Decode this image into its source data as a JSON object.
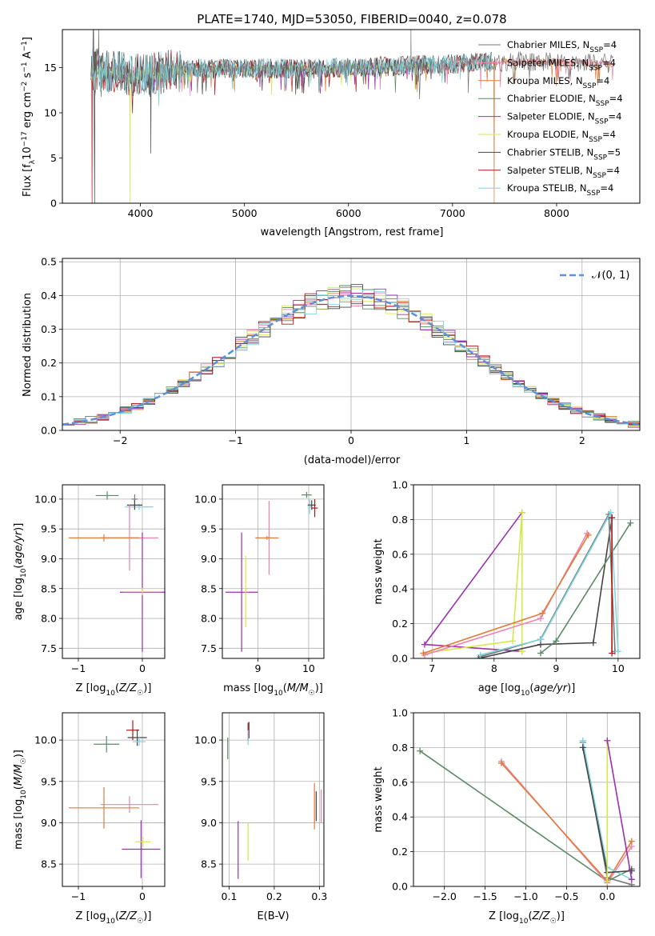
{
  "figure_title": "PLATE=1740, MJD=53050, FIBERID=0040, z=0.078",
  "colors": {
    "Chabrier MILES": "#777777",
    "Salpeter MILES": "#ee82ae",
    "Kroupa MILES": "#e07b39",
    "Chabrier ELODIE": "#5b8a66",
    "Salpeter ELODIE": "#9b30b0",
    "Kroupa ELODIE": "#d4e84a",
    "Chabrier STELIB": "#444444",
    "Salpeter STELIB": "#b01818",
    "Kroupa STELIB": "#7fd6e0",
    "normal": "#5f8fd6"
  },
  "chart_data": [
    {
      "id": "spectrum",
      "type": "line",
      "title": "PLATE=1740, MJD=53050, FIBERID=0040, z=0.078",
      "xlabel": "wavelength [Angstrom, rest frame]",
      "ylabel": "Flux [f_λ10^-17 erg cm^-2 s^-1 A^-1]",
      "xlim": [
        3250,
        8800
      ],
      "ylim": [
        0,
        19.2
      ],
      "xticks": [
        4000,
        5000,
        6000,
        7000,
        8000
      ],
      "yticks": [
        0,
        5,
        10,
        15
      ],
      "legend_position": "upper right",
      "series": [
        {
          "name": "Chabrier MILES, N_SSP=4"
        },
        {
          "name": "Salpeter MILES, N_SSP=4"
        },
        {
          "name": "Kroupa MILES, N_SSP=4"
        },
        {
          "name": "Chabrier ELODIE, N_SSP=4"
        },
        {
          "name": "Salpeter ELODIE, N_SSP=4"
        },
        {
          "name": "Kroupa ELODIE, N_SSP=4"
        },
        {
          "name": "Chabrier STELIB, N_SSP=5"
        },
        {
          "name": "Salpeter STELIB, N_SSP=4"
        },
        {
          "name": "Kroupa STELIB, N_SSP=4"
        }
      ],
      "continuum": [
        [
          3520,
          14.8
        ],
        [
          3700,
          14.5
        ],
        [
          4000,
          14.2
        ],
        [
          4300,
          14.6
        ],
        [
          4600,
          14.9
        ],
        [
          5000,
          14.9
        ],
        [
          5500,
          14.9
        ],
        [
          6000,
          15.0
        ],
        [
          6500,
          15.2
        ],
        [
          6800,
          15.3
        ],
        [
          7000,
          15.4
        ],
        [
          7300,
          15.6
        ],
        [
          7700,
          15.7
        ],
        [
          8200,
          15.6
        ],
        [
          8550,
          15.4
        ]
      ]
    },
    {
      "id": "residuals",
      "type": "histogram",
      "xlabel": "(data-model)/error",
      "ylabel": "Normed distribution",
      "xlim": [
        -2.5,
        2.5
      ],
      "ylim": [
        0,
        0.51
      ],
      "xticks": [
        -2,
        -1,
        0,
        1,
        2
      ],
      "yticks": [
        0.0,
        0.1,
        0.2,
        0.3,
        0.4,
        0.5
      ],
      "bin_width": 0.1,
      "legend": "N(0,1)",
      "legend_position": "upper right"
    },
    {
      "id": "age_vs_Z",
      "type": "errorbar",
      "xlabel": "Z [log10(Z/Z☉)]",
      "ylabel": "age  [log10(age/yr)]",
      "xlim": [
        -1.25,
        0.35
      ],
      "ylim": [
        7.33,
        10.24
      ],
      "xticks": [
        -1,
        0
      ],
      "yticks": [
        7.5,
        8.0,
        8.5,
        9.0,
        9.5,
        10.0
      ],
      "points": [
        {
          "model": "Chabrier ELODIE",
          "x": -0.55,
          "y": 10.06,
          "xerr": 0.18,
          "yerr": 0.07
        },
        {
          "model": "Chabrier MILES",
          "x": -0.12,
          "y": 10.0,
          "xerr": 0.05,
          "yerr": 0.08
        },
        {
          "model": "Kroupa STELIB",
          "x": -0.05,
          "y": 9.87,
          "xerr": 0.22,
          "yerr": 0.05
        },
        {
          "model": "Chabrier STELIB",
          "x": -0.12,
          "y": 9.9,
          "xerr": 0.12,
          "yerr": 0.08
        },
        {
          "model": "Salpeter MILES",
          "x": -0.2,
          "y": 9.35,
          "xerr": 0.45,
          "yerr": 0.55
        },
        {
          "model": "Kroupa MILES",
          "x": -0.6,
          "y": 9.35,
          "xerr": 0.55,
          "yerr": 0.06
        },
        {
          "model": "Salpeter ELODIE",
          "x": 0.0,
          "y": 8.44,
          "xerr": 0.35,
          "yerr": 1.0
        },
        {
          "model": "Kroupa ELODIE",
          "x": 0.0,
          "y": 8.45,
          "xerr": 0.3,
          "yerr": 0.06
        }
      ]
    },
    {
      "id": "age_vs_mass",
      "type": "errorbar",
      "xlabel": "mass [log10(M/M☉)]",
      "xlim": [
        8.3,
        10.3
      ],
      "ylim": [
        7.33,
        10.24
      ],
      "xticks": [
        9,
        10
      ],
      "yticks": [
        7.5,
        8.0,
        8.5,
        9.0,
        9.5,
        10.0
      ],
      "points": [
        {
          "model": "Chabrier ELODIE",
          "x": 9.96,
          "y": 10.07,
          "xerr": 0.1,
          "yerr": 0.05
        },
        {
          "model": "Kroupa STELIB",
          "x": 10.02,
          "y": 9.87,
          "xerr": 0.04,
          "yerr": 0.12
        },
        {
          "model": "Chabrier STELIB",
          "x": 10.06,
          "y": 9.9,
          "xerr": 0.08,
          "yerr": 0.08
        },
        {
          "model": "Salpeter STELIB",
          "x": 10.12,
          "y": 9.85,
          "xerr": 0.06,
          "yerr": 0.15
        },
        {
          "model": "Salpeter MILES",
          "x": 9.22,
          "y": 9.35,
          "xerr": 0.03,
          "yerr": 0.62
        },
        {
          "model": "Kroupa MILES",
          "x": 9.18,
          "y": 9.35,
          "xerr": 0.23,
          "yerr": 0.03
        },
        {
          "model": "Salpeter ELODIE",
          "x": 8.68,
          "y": 8.44,
          "xerr": 0.32,
          "yerr": 1.0
        },
        {
          "model": "Kroupa ELODIE",
          "x": 8.76,
          "y": 8.45,
          "xerr": 0.06,
          "yerr": 0.6
        }
      ]
    },
    {
      "id": "weight_vs_age",
      "type": "line",
      "xlabel": "age  [log10(age/yr)]",
      "ylabel": "mass weight",
      "xlim": [
        6.7,
        10.35
      ],
      "ylim": [
        0.0,
        1.0
      ],
      "xticks": [
        7,
        8,
        9,
        10
      ],
      "yticks": [
        0.0,
        0.2,
        0.4,
        0.6,
        0.8,
        1.0
      ],
      "series": [
        {
          "model": "Salpeter ELODIE",
          "points": [
            [
              8.45,
              0.04
            ],
            [
              6.88,
              0.08
            ],
            [
              8.45,
              0.84
            ]
          ]
        },
        {
          "model": "Kroupa ELODIE",
          "points": [
            [
              6.86,
              0.03
            ],
            [
              8.3,
              0.1
            ],
            [
              8.45,
              0.84
            ],
            [
              8.45,
              0.04
            ]
          ]
        },
        {
          "model": "Salpeter MILES",
          "points": [
            [
              6.88,
              0.02
            ],
            [
              8.75,
              0.23
            ],
            [
              9.5,
              0.72
            ]
          ]
        },
        {
          "model": "Kroupa MILES",
          "points": [
            [
              6.86,
              0.03
            ],
            [
              8.78,
              0.26
            ],
            [
              9.52,
              0.71
            ]
          ]
        },
        {
          "model": "Chabrier STELIB",
          "points": [
            [
              7.75,
              0.0
            ],
            [
              8.75,
              0.08
            ],
            [
              9.6,
              0.09
            ],
            [
              9.9,
              0.81
            ]
          ]
        },
        {
          "model": "Chabrier ELODIE",
          "points": [
            [
              8.75,
              0.03
            ],
            [
              9.0,
              0.1
            ],
            [
              10.2,
              0.78
            ]
          ]
        },
        {
          "model": "Chabrier MILES",
          "points": [
            [
              7.78,
              0.01
            ],
            [
              8.75,
              0.11
            ],
            [
              9.85,
              0.83
            ],
            [
              9.95,
              0.04
            ]
          ]
        },
        {
          "model": "Kroupa STELIB",
          "points": [
            [
              7.78,
              0.02
            ],
            [
              8.76,
              0.11
            ],
            [
              9.88,
              0.84
            ],
            [
              10.0,
              0.04
            ]
          ]
        },
        {
          "model": "Salpeter STELIB",
          "points": [
            [
              9.9,
              0.81
            ],
            [
              9.9,
              0.03
            ]
          ]
        }
      ]
    },
    {
      "id": "mass_vs_Z",
      "type": "errorbar",
      "xlabel": "Z [log10(Z/Z☉)]",
      "ylabel": "mass [log10(M/M☉)]",
      "xlim": [
        -1.25,
        0.35
      ],
      "ylim": [
        8.23,
        10.33
      ],
      "xticks": [
        -1,
        0
      ],
      "yticks": [
        8.5,
        9.0,
        9.5,
        10.0
      ],
      "points": [
        {
          "model": "Chabrier ELODIE",
          "x": -0.56,
          "y": 9.95,
          "xerr": 0.2,
          "yerr": 0.1
        },
        {
          "model": "Salpeter STELIB",
          "x": -0.15,
          "y": 10.12,
          "xerr": 0.1,
          "yerr": 0.12
        },
        {
          "model": "Chabrier STELIB",
          "x": -0.08,
          "y": 10.03,
          "xerr": 0.15,
          "yerr": 0.1
        },
        {
          "model": "Kroupa STELIB",
          "x": -0.05,
          "y": 9.98,
          "xerr": 0.1,
          "yerr": 0.05
        },
        {
          "model": "Salpeter MILES",
          "x": -0.2,
          "y": 9.22,
          "xerr": 0.45,
          "yerr": 0.1
        },
        {
          "model": "Kroupa MILES",
          "x": -0.6,
          "y": 9.18,
          "xerr": 0.55,
          "yerr": 0.25
        },
        {
          "model": "Salpeter ELODIE",
          "x": -0.02,
          "y": 8.68,
          "xerr": 0.3,
          "yerr": 0.35
        },
        {
          "model": "Kroupa ELODIE",
          "x": 0.01,
          "y": 8.77,
          "xerr": 0.12,
          "yerr": 0.06
        }
      ]
    },
    {
      "id": "mass_vs_ebv",
      "type": "errorbar",
      "xlabel": "E(B-V)",
      "xlim": [
        0.085,
        0.31
      ],
      "ylim": [
        8.23,
        10.33
      ],
      "xticks": [
        0.1,
        0.2,
        0.3
      ],
      "yticks": [
        8.5,
        9.0,
        9.5,
        10.0
      ],
      "points": [
        {
          "model": "Chabrier ELODIE",
          "x": 0.097,
          "y": 9.9,
          "yerr": 0.13
        },
        {
          "model": "Salpeter ELODIE",
          "x": 0.12,
          "y": 8.67,
          "yerr": 0.35
        },
        {
          "model": "Kroupa ELODIE",
          "x": 0.142,
          "y": 8.77,
          "yerr": 0.23
        },
        {
          "model": "Chabrier STELIB",
          "x": 0.142,
          "y": 10.1,
          "yerr": 0.11
        },
        {
          "model": "Salpeter STELIB",
          "x": 0.144,
          "y": 10.12,
          "yerr": 0.1
        },
        {
          "model": "Kroupa STELIB",
          "x": 0.142,
          "y": 10.03,
          "yerr": 0.09
        },
        {
          "model": "Kroupa MILES",
          "x": 0.289,
          "y": 9.2,
          "yerr": 0.28
        },
        {
          "model": "Chabrier STELIB",
          "x": 0.293,
          "y": 9.2,
          "yerr": 0.18
        },
        {
          "model": "Salpeter MILES",
          "x": 0.304,
          "y": 9.2,
          "yerr": 0.2
        }
      ]
    },
    {
      "id": "weight_vs_Z",
      "type": "line",
      "xlabel": "Z [log10(Z/Z☉)]",
      "ylabel": "mass weight",
      "xlim": [
        -2.38,
        0.4
      ],
      "ylim": [
        0.0,
        1.0
      ],
      "xticks": [
        -2.0,
        -1.5,
        -1.0,
        -0.5,
        0.0
      ],
      "yticks": [
        0.0,
        0.2,
        0.4,
        0.6,
        0.8,
        1.0
      ],
      "series": [
        {
          "model": "Chabrier ELODIE",
          "points": [
            [
              -2.3,
              0.78
            ],
            [
              0.0,
              0.03
            ],
            [
              0.3,
              0.1
            ]
          ]
        },
        {
          "model": "Salpeter MILES",
          "points": [
            [
              -1.3,
              0.72
            ],
            [
              0.0,
              0.02
            ],
            [
              0.3,
              0.23
            ]
          ]
        },
        {
          "model": "Kroupa MILES",
          "points": [
            [
              -1.3,
              0.71
            ],
            [
              0.0,
              0.03
            ],
            [
              0.3,
              0.26
            ]
          ]
        },
        {
          "model": "Chabrier MILES",
          "points": [
            [
              -0.3,
              0.83
            ],
            [
              0.0,
              0.05
            ],
            [
              0.3,
              0.01
            ]
          ]
        },
        {
          "model": "Kroupa STELIB",
          "points": [
            [
              -0.3,
              0.84
            ],
            [
              0.0,
              0.11
            ],
            [
              0.3,
              0.04
            ]
          ]
        },
        {
          "model": "Chabrier STELIB",
          "points": [
            [
              -0.3,
              0.8
            ],
            [
              0.0,
              0.08
            ],
            [
              0.3,
              0.09
            ]
          ]
        },
        {
          "model": "Kroupa ELODIE",
          "points": [
            [
              0.0,
              0.84
            ],
            [
              0.0,
              0.03
            ]
          ]
        },
        {
          "model": "Salpeter ELODIE",
          "points": [
            [
              0.0,
              0.84
            ],
            [
              0.3,
              0.04
            ]
          ]
        }
      ]
    }
  ]
}
